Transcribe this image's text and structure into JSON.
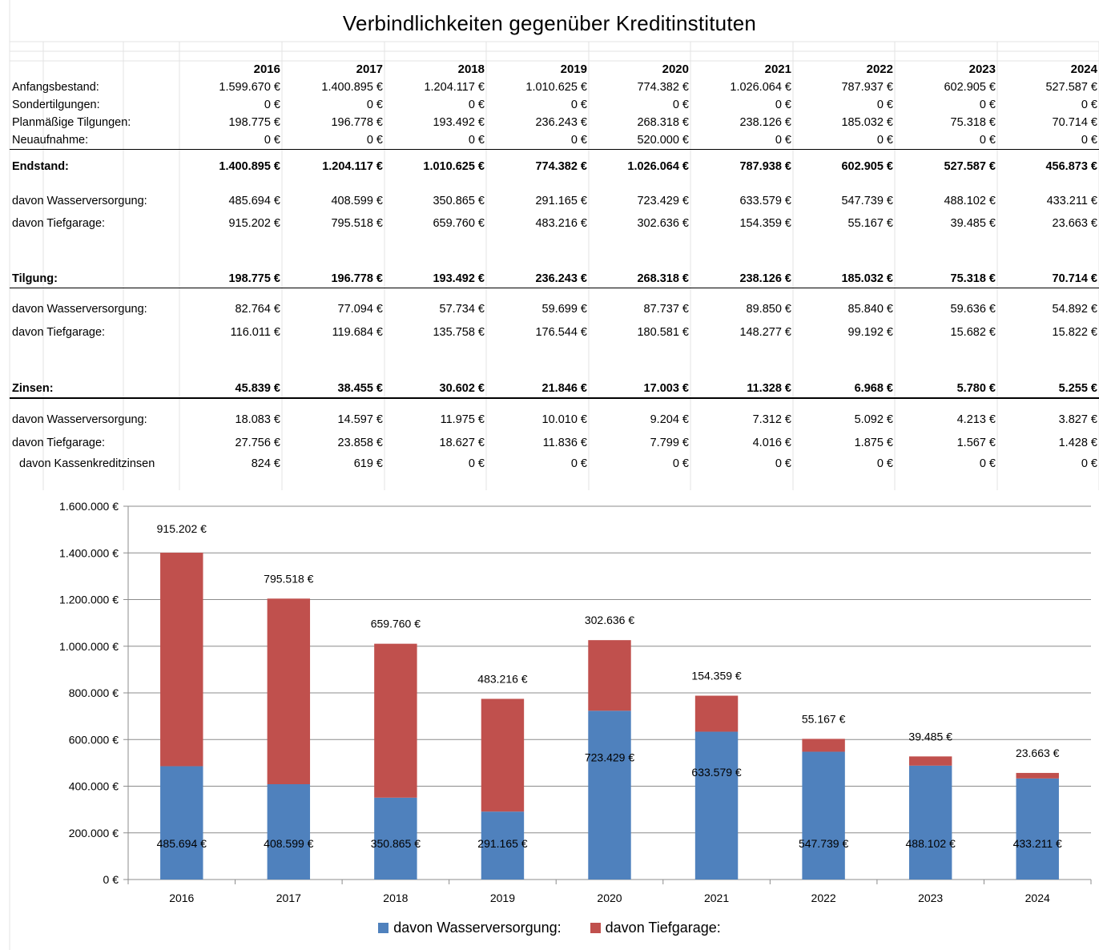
{
  "title": "Verbindlichkeiten gegenüber Kreditinstituten",
  "years": [
    "2016",
    "2017",
    "2018",
    "2019",
    "2020",
    "2021",
    "2022",
    "2023",
    "2024"
  ],
  "rows": [
    {
      "label": "Anfangsbestand:",
      "values": [
        "1.599.670 €",
        "1.400.895 €",
        "1.204.117 €",
        "1.010.625 €",
        "774.382 €",
        "1.026.064 €",
        "787.937 €",
        "602.905 €",
        "527.587 €"
      ]
    },
    {
      "label": "Sondertilgungen:",
      "values": [
        "0 €",
        "0 €",
        "0 €",
        "0 €",
        "0 €",
        "0 €",
        "0 €",
        "0 €",
        "0 €"
      ]
    },
    {
      "label": "Planmäßige Tilgungen:",
      "values": [
        "198.775 €",
        "196.778 €",
        "193.492 €",
        "236.243 €",
        "268.318 €",
        "238.126 €",
        "185.032 €",
        "75.318 €",
        "70.714 €"
      ]
    },
    {
      "label": "Neuaufnahme:",
      "values": [
        "0 €",
        "0 €",
        "0 €",
        "0 €",
        "520.000 €",
        "0 €",
        "0 €",
        "0 €",
        "0 €"
      ]
    },
    {
      "label": "Endstand:",
      "values": [
        "1.400.895 €",
        "1.204.117 €",
        "1.010.625 €",
        "774.382 €",
        "1.026.064 €",
        "787.938 €",
        "602.905 €",
        "527.587 €",
        "456.873 €"
      ]
    },
    {
      "label": "davon Wasserversorgung:",
      "values": [
        "485.694 €",
        "408.599 €",
        "350.865 €",
        "291.165 €",
        "723.429 €",
        "633.579 €",
        "547.739 €",
        "488.102 €",
        "433.211 €"
      ]
    },
    {
      "label": "davon Tiefgarage:",
      "values": [
        "915.202 €",
        "795.518 €",
        "659.760 €",
        "483.216 €",
        "302.636 €",
        "154.359 €",
        "55.167 €",
        "39.485 €",
        "23.663 €"
      ]
    },
    {
      "label": "Tilgung:",
      "values": [
        "198.775 €",
        "196.778 €",
        "193.492 €",
        "236.243 €",
        "268.318 €",
        "238.126 €",
        "185.032 €",
        "75.318 €",
        "70.714 €"
      ]
    },
    {
      "label": "davon Wasserversorgung:",
      "values": [
        "82.764 €",
        "77.094 €",
        "57.734 €",
        "59.699 €",
        "87.737 €",
        "89.850 €",
        "85.840 €",
        "59.636 €",
        "54.892 €"
      ]
    },
    {
      "label": "davon Tiefgarage:",
      "values": [
        "116.011 €",
        "119.684 €",
        "135.758 €",
        "176.544 €",
        "180.581 €",
        "148.277 €",
        "99.192 €",
        "15.682 €",
        "15.822 €"
      ]
    },
    {
      "label": "Zinsen:",
      "values": [
        "45.839 €",
        "38.455 €",
        "30.602 €",
        "21.846 €",
        "17.003 €",
        "11.328 €",
        "6.968 €",
        "5.780 €",
        "5.255 €"
      ]
    },
    {
      "label": "davon Wasserversorgung:",
      "values": [
        "18.083 €",
        "14.597 €",
        "11.975 €",
        "10.010 €",
        "9.204 €",
        "7.312 €",
        "5.092 €",
        "4.213 €",
        "3.827 €"
      ]
    },
    {
      "label": "davon Tiefgarage:",
      "values": [
        "27.756 €",
        "23.858 €",
        "18.627 €",
        "11.836 €",
        "7.799 €",
        "4.016 €",
        "1.875 €",
        "1.567 €",
        "1.428 €"
      ]
    },
    {
      "label": "davon Kassenkreditzinsen",
      "values": [
        "824 €",
        "619 €",
        "0 €",
        "0 €",
        "0 €",
        "0 €",
        "0 €",
        "0 €",
        "0 €"
      ]
    }
  ],
  "chart_data": {
    "type": "bar",
    "stacked": true,
    "categories": [
      "2016",
      "2017",
      "2018",
      "2019",
      "2020",
      "2021",
      "2022",
      "2023",
      "2024"
    ],
    "series": [
      {
        "name": "davon Wasserversorgung:",
        "color": "#4F81BD",
        "values": [
          485694,
          408599,
          350865,
          291165,
          723429,
          633579,
          547739,
          488102,
          433211
        ],
        "labels": [
          "485.694 €",
          "408.599 €",
          "350.865 €",
          "291.165 €",
          "723.429 €",
          "633.579 €",
          "547.739 €",
          "488.102 €",
          "433.211 €"
        ]
      },
      {
        "name": "davon Tiefgarage:",
        "color": "#C0504D",
        "values": [
          915202,
          795518,
          659760,
          483216,
          302636,
          154359,
          55167,
          39485,
          23663
        ],
        "labels": [
          "915.202 €",
          "795.518 €",
          "659.760 €",
          "483.216 €",
          "302.636 €",
          "154.359 €",
          "55.167 €",
          "39.485 €",
          "23.663 €"
        ]
      }
    ],
    "ylim": [
      0,
      1600000
    ],
    "yticks": [
      "0 €",
      "200.000 €",
      "400.000 €",
      "600.000 €",
      "800.000 €",
      "1.000.000 €",
      "1.200.000 €",
      "1.400.000 €",
      "1.600.000 €"
    ],
    "grid": true,
    "legend": "bottom"
  }
}
